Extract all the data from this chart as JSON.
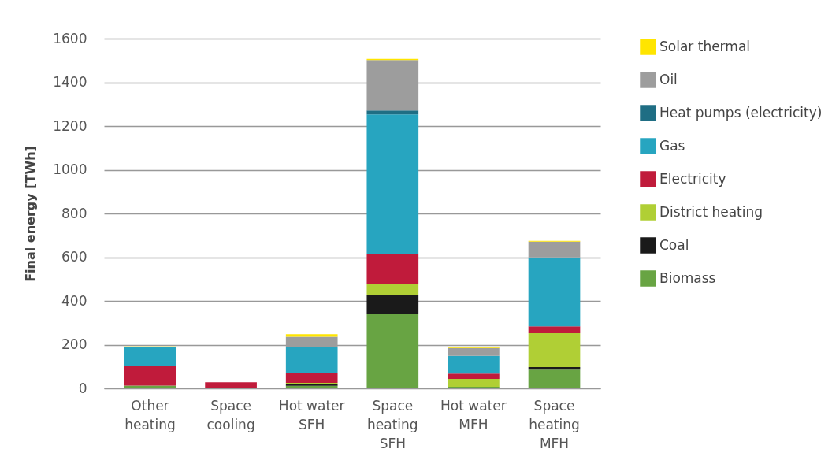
{
  "chart_data": {
    "type": "bar",
    "stacked": true,
    "ylabel": "Final energy [TWh]",
    "categories": [
      "Other heating",
      "Space cooling",
      "Hot water SFH",
      "Space heating SFH",
      "Hot water MFH",
      "Space heating MFH"
    ],
    "series": [
      {
        "name": "Biomass",
        "color": "#68a443",
        "values": [
          13,
          0,
          12,
          340,
          7,
          86
        ]
      },
      {
        "name": "Coal",
        "color": "#1a1a1a",
        "values": [
          0,
          0,
          7,
          88,
          0,
          11
        ]
      },
      {
        "name": "District heating",
        "color": "#b0cf35",
        "values": [
          0,
          0,
          6,
          49,
          36,
          155
        ]
      },
      {
        "name": "Electricity",
        "color": "#c01b3b",
        "values": [
          91,
          28,
          46,
          138,
          25,
          32
        ]
      },
      {
        "name": "Gas",
        "color": "#27a5c0",
        "values": [
          84,
          0,
          117,
          638,
          81,
          315
        ]
      },
      {
        "name": "Heat pumps (electricity)",
        "color": "#1f6e84",
        "values": [
          0,
          0,
          0,
          18,
          0,
          0
        ]
      },
      {
        "name": "Oil",
        "color": "#9d9d9d",
        "values": [
          0,
          0,
          48,
          231,
          36,
          72
        ]
      },
      {
        "name": "Solar thermal",
        "color": "#ffe500",
        "values": [
          4,
          0,
          12,
          5,
          4,
          4
        ]
      }
    ],
    "ylim": [
      0,
      1600
    ],
    "yticks": [
      0,
      200,
      400,
      600,
      800,
      1000,
      1200,
      1400,
      1600
    ],
    "grid": "y",
    "legend": "right"
  }
}
